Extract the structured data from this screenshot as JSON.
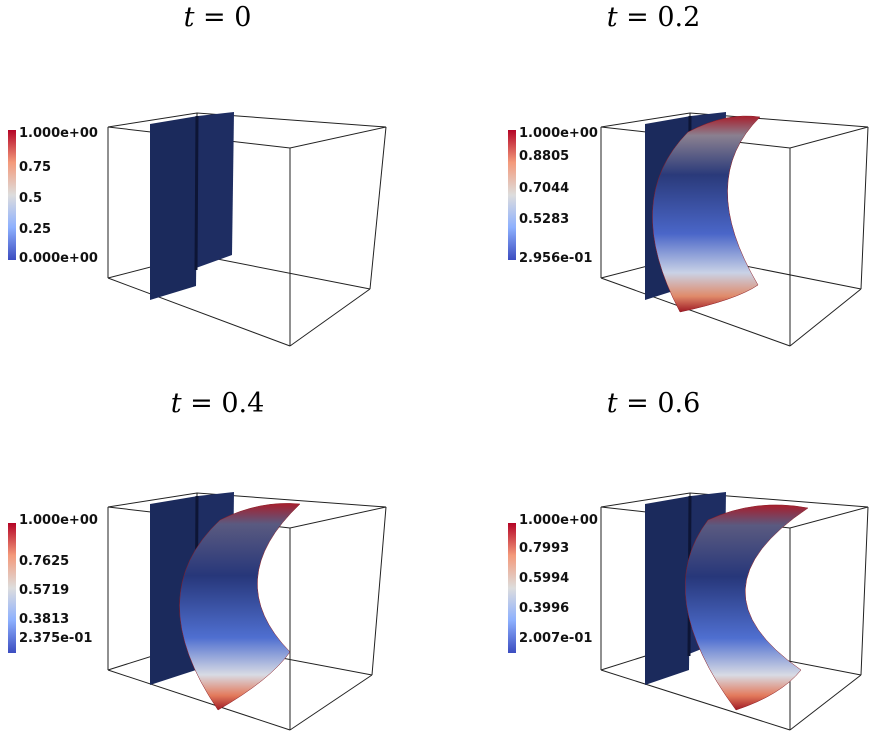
{
  "panels": [
    {
      "title_t": "t",
      "title_rest": " = 0",
      "colorbar": {
        "labels": [
          "1.000e+00",
          "0.75",
          "0.5",
          "0.25",
          "0.000e+00"
        ]
      }
    },
    {
      "title_t": "t",
      "title_rest": " = 0.2",
      "colorbar": {
        "labels": [
          "1.000e+00",
          "0.8805",
          "0.7044",
          "0.5283",
          "2.956e-01"
        ]
      }
    },
    {
      "title_t": "t",
      "title_rest": " = 0.4",
      "colorbar": {
        "labels": [
          "1.000e+00",
          "0.7625",
          "0.5719",
          "0.3813",
          "2.375e-01"
        ]
      }
    },
    {
      "title_t": "t",
      "title_rest": " = 0.6",
      "colorbar": {
        "labels": [
          "1.000e+00",
          "0.7993",
          "0.5994",
          "0.3996",
          "2.007e-01"
        ]
      }
    }
  ],
  "colors": {
    "plane": "#1b2a5c",
    "low": "#3b4cc0",
    "mid": "#dddddd",
    "high": "#b40426"
  }
}
